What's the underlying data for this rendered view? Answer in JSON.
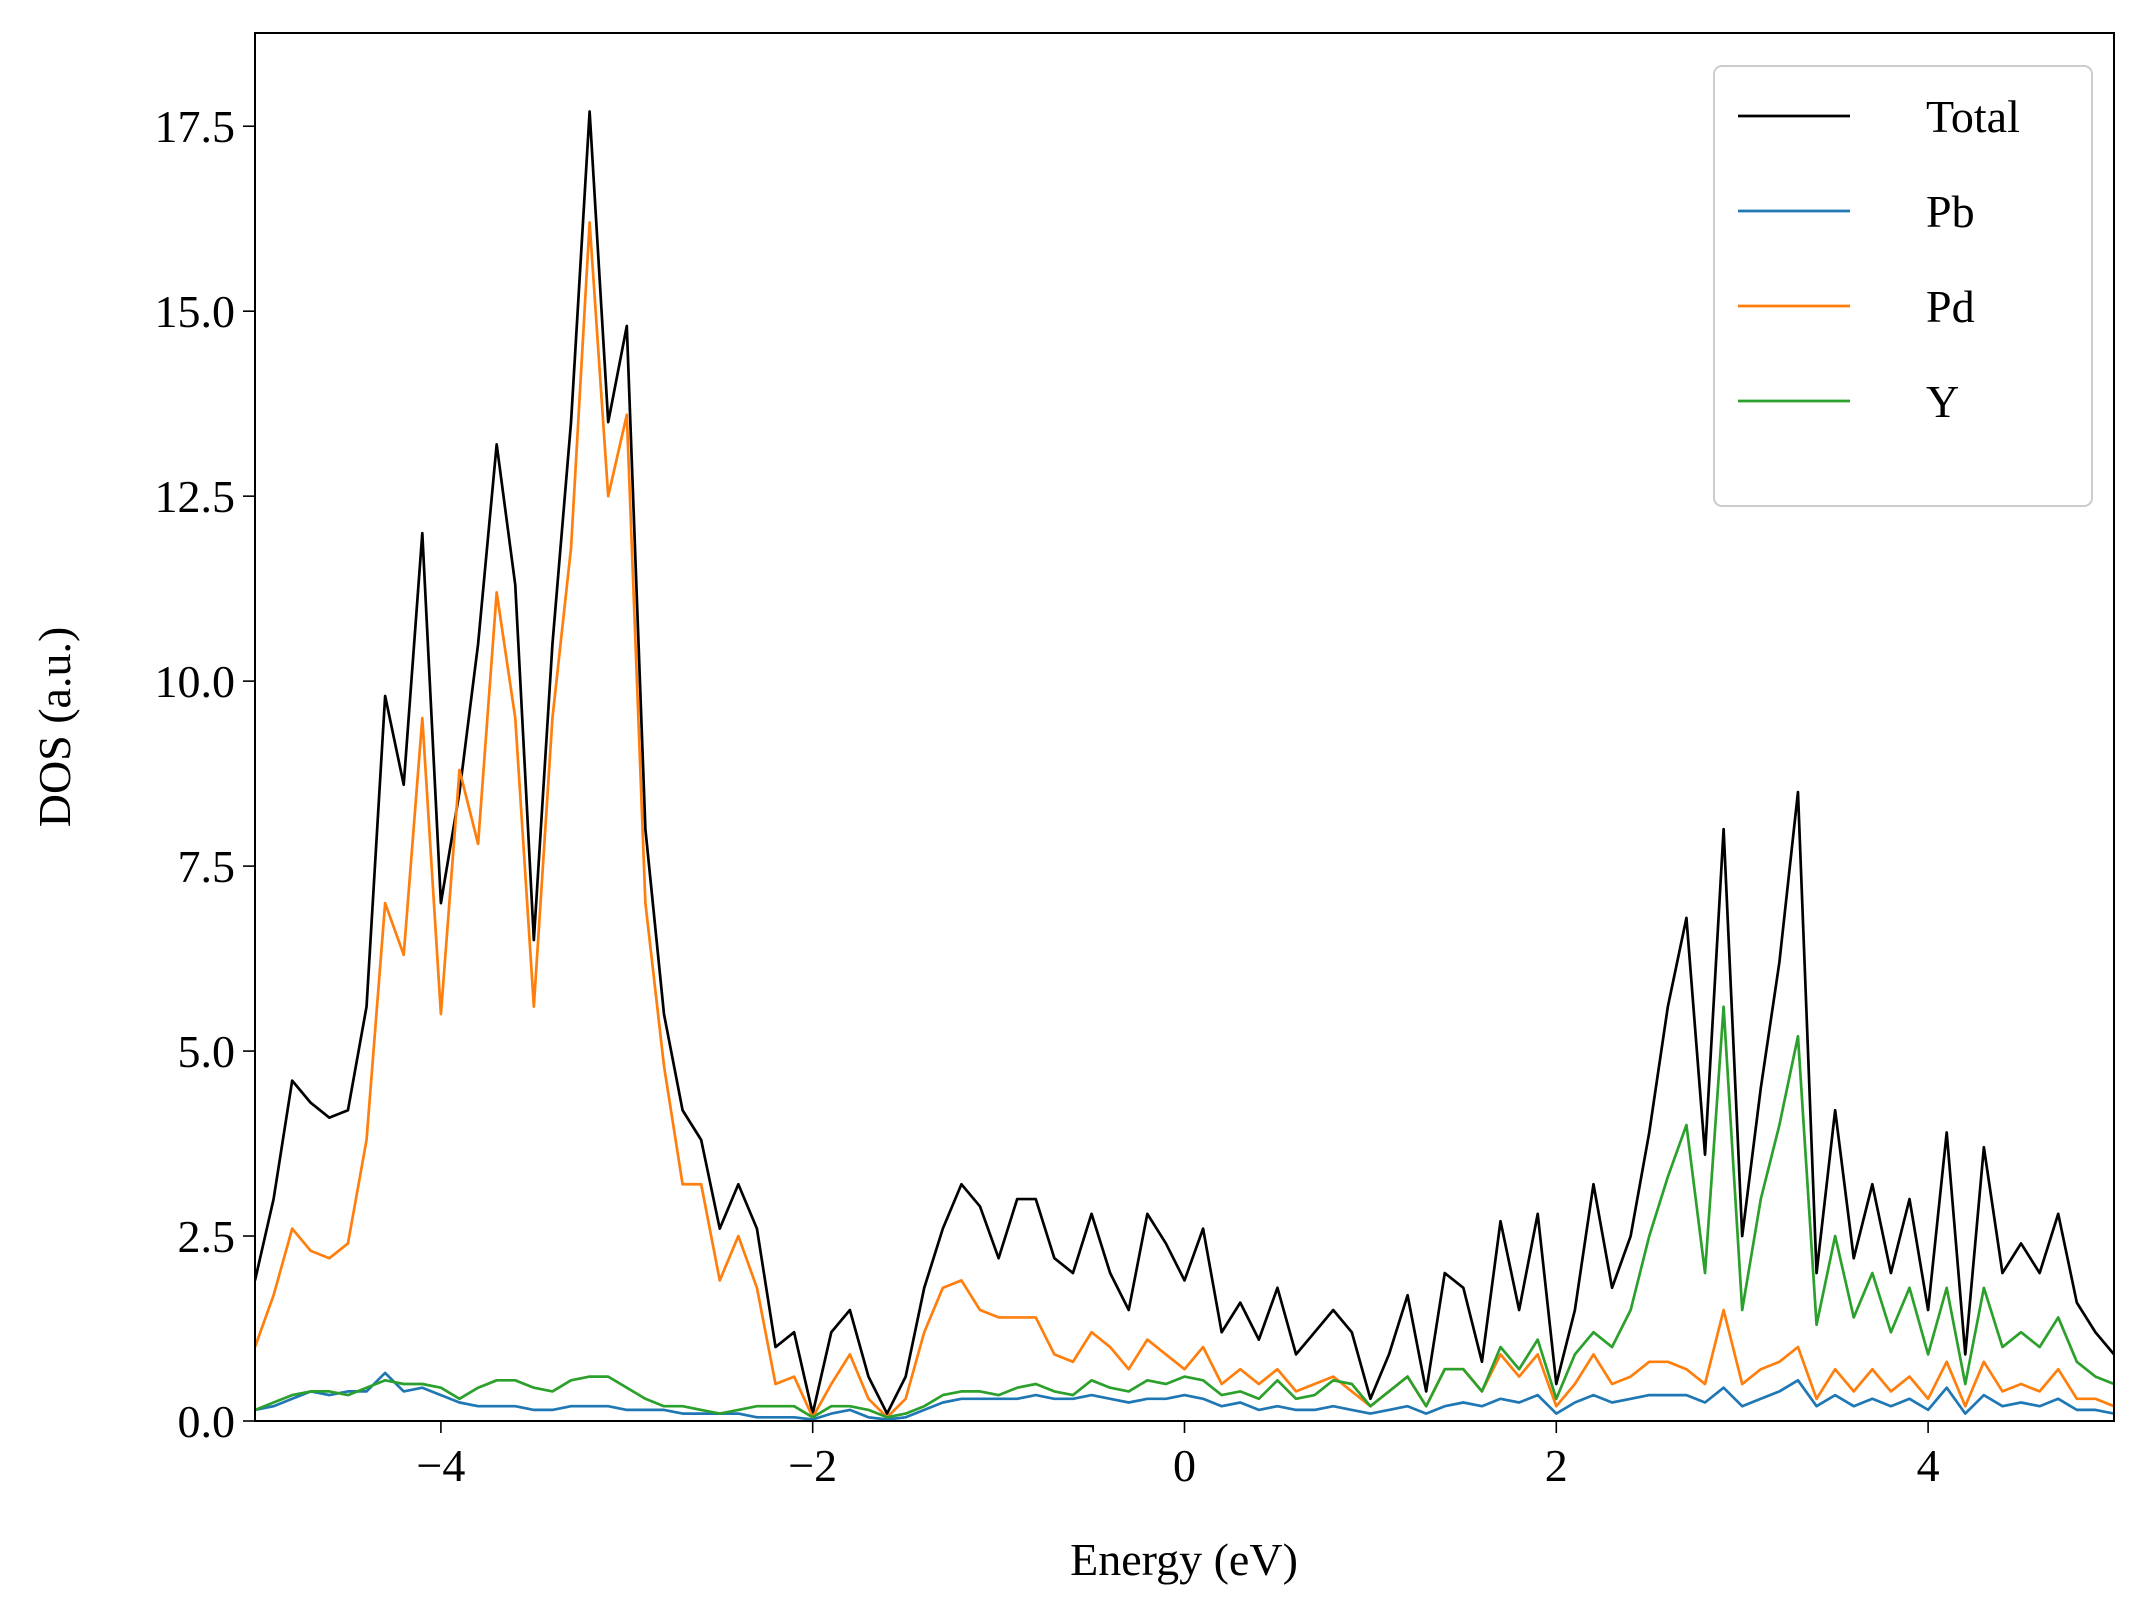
{
  "chart_data": {
    "type": "line",
    "x_label": "Energy (eV)",
    "y_label": "DOS (a.u.)",
    "x": [
      -5.0,
      -4.9,
      -4.8,
      -4.7,
      -4.6,
      -4.5,
      -4.4,
      -4.3,
      -4.2,
      -4.1,
      -4.0,
      -3.9,
      -3.8,
      -3.7,
      -3.6,
      -3.5,
      -3.4,
      -3.3,
      -3.2,
      -3.1,
      -3.0,
      -2.9,
      -2.8,
      -2.7,
      -2.6,
      -2.5,
      -2.4,
      -2.3,
      -2.2,
      -2.1,
      -2.0,
      -1.9,
      -1.8,
      -1.7,
      -1.6,
      -1.5,
      -1.4,
      -1.3,
      -1.2,
      -1.1,
      -1.0,
      -0.9,
      -0.8,
      -0.7,
      -0.6,
      -0.5,
      -0.4,
      -0.3,
      -0.2,
      -0.1,
      0.0,
      0.1,
      0.2,
      0.3,
      0.4,
      0.5,
      0.6,
      0.7,
      0.8,
      0.9,
      1.0,
      1.1,
      1.2,
      1.3,
      1.4,
      1.5,
      1.6,
      1.7,
      1.8,
      1.9,
      2.0,
      2.1,
      2.2,
      2.3,
      2.4,
      2.5,
      2.6,
      2.7,
      2.8,
      2.9,
      3.0,
      3.1,
      3.2,
      3.3,
      3.4,
      3.5,
      3.6,
      3.7,
      3.8,
      3.9,
      4.0,
      4.1,
      4.2,
      4.3,
      4.4,
      4.5,
      4.6,
      4.7,
      4.8,
      4.9,
      5.0
    ],
    "series": [
      {
        "name": "Total",
        "color": "#000000",
        "values": [
          1.9,
          3.0,
          4.6,
          4.3,
          4.1,
          4.2,
          5.6,
          9.8,
          8.6,
          12.0,
          7.0,
          8.5,
          10.5,
          13.2,
          11.3,
          6.5,
          10.5,
          13.5,
          17.7,
          13.5,
          14.8,
          8.0,
          5.5,
          4.2,
          3.8,
          2.6,
          3.2,
          2.6,
          1.0,
          1.2,
          0.1,
          1.2,
          1.5,
          0.6,
          0.1,
          0.6,
          1.8,
          2.6,
          3.2,
          2.9,
          2.2,
          3.0,
          3.0,
          2.2,
          2.0,
          2.8,
          2.0,
          1.5,
          2.8,
          2.4,
          1.9,
          2.6,
          1.2,
          1.6,
          1.1,
          1.8,
          0.9,
          1.2,
          1.5,
          1.2,
          0.3,
          0.9,
          1.7,
          0.4,
          2.0,
          1.8,
          0.8,
          2.7,
          1.5,
          2.8,
          0.5,
          1.5,
          3.2,
          1.8,
          2.5,
          3.9,
          5.6,
          6.8,
          3.6,
          8.0,
          2.5,
          4.5,
          6.2,
          8.5,
          2.0,
          4.2,
          2.2,
          3.2,
          2.0,
          3.0,
          1.5,
          3.9,
          0.9,
          3.7,
          2.0,
          2.4,
          2.0,
          2.8,
          1.6,
          1.2,
          0.9
        ]
      },
      {
        "name": "Pb",
        "color": "#1f77b4",
        "values": [
          0.15,
          0.2,
          0.3,
          0.4,
          0.35,
          0.4,
          0.4,
          0.65,
          0.4,
          0.45,
          0.35,
          0.25,
          0.2,
          0.2,
          0.2,
          0.15,
          0.15,
          0.2,
          0.2,
          0.2,
          0.15,
          0.15,
          0.15,
          0.1,
          0.1,
          0.1,
          0.1,
          0.05,
          0.05,
          0.05,
          0.02,
          0.1,
          0.15,
          0.05,
          0.02,
          0.05,
          0.15,
          0.25,
          0.3,
          0.3,
          0.3,
          0.3,
          0.35,
          0.3,
          0.3,
          0.35,
          0.3,
          0.25,
          0.3,
          0.3,
          0.35,
          0.3,
          0.2,
          0.25,
          0.15,
          0.2,
          0.15,
          0.15,
          0.2,
          0.15,
          0.1,
          0.15,
          0.2,
          0.1,
          0.2,
          0.25,
          0.2,
          0.3,
          0.25,
          0.35,
          0.1,
          0.25,
          0.35,
          0.25,
          0.3,
          0.35,
          0.35,
          0.35,
          0.25,
          0.45,
          0.2,
          0.3,
          0.4,
          0.55,
          0.2,
          0.35,
          0.2,
          0.3,
          0.2,
          0.3,
          0.15,
          0.45,
          0.1,
          0.35,
          0.2,
          0.25,
          0.2,
          0.3,
          0.15,
          0.15,
          0.1
        ]
      },
      {
        "name": "Pd",
        "color": "#ff7f0e",
        "values": [
          1.0,
          1.7,
          2.6,
          2.3,
          2.2,
          2.4,
          3.8,
          7.0,
          6.3,
          9.5,
          5.5,
          8.8,
          7.8,
          11.2,
          9.5,
          5.6,
          9.5,
          11.8,
          16.2,
          12.5,
          13.6,
          7.0,
          4.8,
          3.2,
          3.2,
          1.9,
          2.5,
          1.8,
          0.5,
          0.6,
          0.05,
          0.5,
          0.9,
          0.3,
          0.05,
          0.3,
          1.2,
          1.8,
          1.9,
          1.5,
          1.4,
          1.4,
          1.4,
          0.9,
          0.8,
          1.2,
          1.0,
          0.7,
          1.1,
          0.9,
          0.7,
          1.0,
          0.5,
          0.7,
          0.5,
          0.7,
          0.4,
          0.5,
          0.6,
          0.4,
          0.2,
          0.4,
          0.6,
          0.2,
          0.7,
          0.7,
          0.4,
          0.9,
          0.6,
          0.9,
          0.2,
          0.5,
          0.9,
          0.5,
          0.6,
          0.8,
          0.8,
          0.7,
          0.5,
          1.5,
          0.5,
          0.7,
          0.8,
          1.0,
          0.3,
          0.7,
          0.4,
          0.7,
          0.4,
          0.6,
          0.3,
          0.8,
          0.2,
          0.8,
          0.4,
          0.5,
          0.4,
          0.7,
          0.3,
          0.3,
          0.2
        ]
      },
      {
        "name": "Y",
        "color": "#2ca02c",
        "values": [
          0.15,
          0.25,
          0.35,
          0.4,
          0.4,
          0.35,
          0.45,
          0.55,
          0.5,
          0.5,
          0.45,
          0.3,
          0.45,
          0.55,
          0.55,
          0.45,
          0.4,
          0.55,
          0.6,
          0.6,
          0.45,
          0.3,
          0.2,
          0.2,
          0.15,
          0.1,
          0.15,
          0.2,
          0.2,
          0.2,
          0.05,
          0.2,
          0.2,
          0.15,
          0.05,
          0.1,
          0.2,
          0.35,
          0.4,
          0.4,
          0.35,
          0.45,
          0.5,
          0.4,
          0.35,
          0.55,
          0.45,
          0.4,
          0.55,
          0.5,
          0.6,
          0.55,
          0.35,
          0.4,
          0.3,
          0.55,
          0.3,
          0.35,
          0.55,
          0.5,
          0.2,
          0.4,
          0.6,
          0.2,
          0.7,
          0.7,
          0.4,
          1.0,
          0.7,
          1.1,
          0.3,
          0.9,
          1.2,
          1.0,
          1.5,
          2.5,
          3.3,
          4.0,
          2.0,
          5.6,
          1.5,
          3.0,
          4.0,
          5.2,
          1.3,
          2.5,
          1.4,
          2.0,
          1.2,
          1.8,
          0.9,
          1.8,
          0.5,
          1.8,
          1.0,
          1.2,
          1.0,
          1.4,
          0.8,
          0.6,
          0.5
        ]
      }
    ],
    "xlim": [
      -5,
      5
    ],
    "ylim": [
      0,
      18.76
    ],
    "xticks": [
      {
        "value": -4,
        "label": "−4"
      },
      {
        "value": -2,
        "label": "−2"
      },
      0,
      2,
      4
    ],
    "yticks": [
      {
        "value": 0,
        "label": "0.0"
      },
      {
        "value": 2.5,
        "label": "2.5"
      },
      {
        "value": 5,
        "label": "5.0"
      },
      {
        "value": 7.5,
        "label": "7.5"
      },
      {
        "value": 10,
        "label": "10.0"
      },
      {
        "value": 12.5,
        "label": "12.5"
      },
      {
        "value": 15,
        "label": "15.0"
      },
      {
        "value": 17.5,
        "label": "17.5"
      }
    ],
    "grid": false,
    "legend": "upper right"
  }
}
